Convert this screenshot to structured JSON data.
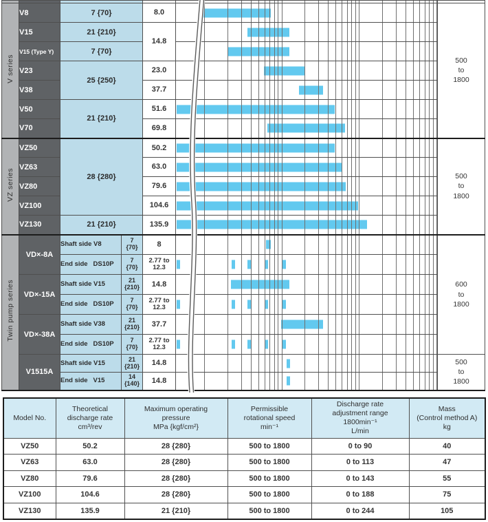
{
  "colors": {
    "bar_blue": "#62c9ef",
    "cell_light_blue": "#bcdcea",
    "table_header_blue": "#d2eaf4",
    "model_cell_dark_gray": "#5f6265",
    "series_column_gray": "#b1b3b5",
    "gridline_gray": "#6e6e6e",
    "border_gray": "#4f4f4f",
    "section_border_black": "#1c1c1c"
  },
  "spec_chart": {
    "series_labels": [
      "V series",
      "VZ series",
      "Twin pump series"
    ],
    "speeds": [
      "500\nto\n1800",
      "500\nto\n1800",
      "600\nto\n1800",
      "500\nto\n1800"
    ],
    "rows": [
      {
        "model": "V8",
        "pressure": "7 {70}",
        "value": "8.0"
      },
      {
        "model": "V15",
        "pressure": "21 {210}",
        "value": "14.8"
      },
      {
        "model": "V15 (Type Y)",
        "pressure": "7 {70}"
      },
      {
        "model": "V23",
        "pressure": "25 {250}",
        "value": "23.0"
      },
      {
        "model": "V38",
        "value": "37.7"
      },
      {
        "model": "V50",
        "pressure": "21 {210}",
        "value": "51.6"
      },
      {
        "model": "V70",
        "value": "69.8"
      },
      {
        "model": "VZ50",
        "pressure": "28 {280}",
        "value": "50.2"
      },
      {
        "model": "VZ63",
        "value": "63.0"
      },
      {
        "model": "VZ80",
        "value": "79.6"
      },
      {
        "model": "VZ100",
        "value": "104.6"
      },
      {
        "model": "VZ130",
        "pressure": "21 {210}",
        "value": "135.9"
      },
      {
        "model": "VD×-8A",
        "desc": "Shaft side V8",
        "pressure": "7\n{70}",
        "value": "8"
      },
      {
        "desc": "End side   DS10P",
        "pressure": "7\n{70}",
        "value": "2.77 to\n12.3"
      },
      {
        "model": "VD×-15A",
        "desc": "Shaft side V15",
        "pressure": "21\n{210}",
        "value": "14.8"
      },
      {
        "desc": "End side   DS10P",
        "pressure": "7\n{70}",
        "value": "2.77 to\n12.3"
      },
      {
        "model": "VD×-38A",
        "desc": "Shaft side V38",
        "pressure": "21\n{210}",
        "value": "37.7"
      },
      {
        "desc": "End side   DS10P",
        "pressure": "7\n{70}",
        "value": "2.77 to\n12.3"
      },
      {
        "model": "V1515A",
        "desc": "Shaft side V15",
        "pressure": "21\n{210}",
        "value": "14.8"
      },
      {
        "desc": "End side   V15",
        "pressure": "14\n{140}",
        "value": "14.8"
      }
    ]
  },
  "chart_data": {
    "type": "bar",
    "orientation": "horizontal-range",
    "title": "Theoretical discharge rate range per pump model",
    "x_axis": {
      "scale": "log",
      "tick_labels_visible": false,
      "has_scale_break_at_left": true
    },
    "grid": true,
    "gridlines_pct": [
      10.76,
      19.68,
      24.91,
      28.61,
      31.49,
      33.83,
      35.85,
      37.56,
      39.05,
      40.42,
      49.34,
      54.57,
      58.27,
      61.15,
      63.49,
      65.51,
      67.22,
      68.71,
      70.08,
      79.0,
      84.23,
      87.93,
      90.81,
      93.15,
      95.17,
      96.88,
      98.37,
      99.74
    ],
    "rows": [
      {
        "model": "V8",
        "discharge_cm3_rev": 8.0,
        "bar": {
          "from_pct": 9.97,
          "to_pct": 36.2
        }
      },
      {
        "model": "V15",
        "discharge_cm3_rev": 14.8,
        "bar": {
          "from_pct": 27.3,
          "to_pct": 43.3
        }
      },
      {
        "model": "V15 (Type Y)",
        "discharge_cm3_rev": 14.8,
        "bar": {
          "from_pct": 19.95,
          "to_pct": 43.3
        }
      },
      {
        "model": "V23",
        "discharge_cm3_rev": 23.0,
        "bar": {
          "from_pct": 33.6,
          "to_pct": 49.3
        }
      },
      {
        "model": "V38",
        "discharge_cm3_rev": 37.7,
        "bar": {
          "from_pct": 47.0,
          "to_pct": 56.4
        }
      },
      {
        "model": "V50",
        "discharge_cm3_rev": 51.6,
        "bar": {
          "from_pct": 0.26,
          "to_pct": 60.9
        }
      },
      {
        "model": "V70",
        "discharge_cm3_rev": 69.8,
        "bar": {
          "from_pct": 34.9,
          "to_pct": 64.8
        }
      },
      {
        "model": "VZ50",
        "discharge_cm3_rev": 50.2,
        "bar": {
          "from_pct": 0.26,
          "to_pct": 60.9
        }
      },
      {
        "model": "VZ63",
        "discharge_cm3_rev": 63.0,
        "bar": {
          "from_pct": 0.26,
          "to_pct": 63.5
        }
      },
      {
        "model": "VZ80",
        "discharge_cm3_rev": 79.6,
        "bar": {
          "from_pct": 0.26,
          "to_pct": 65.1
        }
      },
      {
        "model": "VZ100",
        "discharge_cm3_rev": 104.6,
        "bar": {
          "from_pct": 0.26,
          "to_pct": 69.8
        }
      },
      {
        "model": "VZ130",
        "discharge_cm3_rev": 135.9,
        "bar": {
          "from_pct": 0.26,
          "to_pct": 73.2
        }
      },
      {
        "model": "VD×-8A shaft side V8",
        "discharge_cm3_rev": 8,
        "bar": {
          "from_pct": 34.4,
          "to_pct": 36.2
        }
      },
      {
        "model": "VD×-8A end side DS10P",
        "discharge_range": "2.77 to 12.3",
        "ticks_pct": [
          0.26,
          21.3,
          27.3,
          33.9,
          40.7
        ],
        "tick_w_pct": 1.4
      },
      {
        "model": "VD×-15A shaft side V15",
        "discharge_cm3_rev": 14.8,
        "bar": {
          "from_pct": 21.0,
          "to_pct": 43.3
        }
      },
      {
        "model": "VD×-15A end side DS10P",
        "discharge_range": "2.77 to 12.3",
        "ticks_pct": [
          0.26,
          21.3,
          27.3,
          33.9,
          40.7
        ],
        "tick_w_pct": 1.4
      },
      {
        "model": "VD×-38A shaft side V38",
        "discharge_cm3_rev": 37.7,
        "bar": {
          "from_pct": 40.2,
          "to_pct": 56.2
        }
      },
      {
        "model": "VD×-38A end side DS10P",
        "discharge_range": "2.77 to 12.3",
        "ticks_pct": [
          0.26,
          21.3,
          27.3,
          33.9,
          40.7
        ],
        "tick_w_pct": 1.4
      },
      {
        "model": "V1515A shaft side V15",
        "discharge_cm3_rev": 14.8,
        "bar": {
          "from_pct": 42.3,
          "to_pct": 43.7
        }
      },
      {
        "model": "V1515A end side V15",
        "discharge_cm3_rev": 14.8,
        "bar": {
          "from_pct": 42.3,
          "to_pct": 43.7
        }
      }
    ]
  },
  "bottom_table": {
    "headers": [
      "Model No.",
      "Theoretical\ndischarge rate\ncm³/rev",
      "Maximum operating\npressure\nMPa {kgf/cm²}",
      "Permissible\nrotational speed\nmin⁻¹",
      "Discharge rate\nadjustment range\n1800min⁻¹\nL/min",
      "Mass\n(Control method A)\nkg"
    ],
    "rows": [
      [
        "VZ50",
        "50.2",
        "28 {280}",
        "500 to 1800",
        "0 to  90",
        "40"
      ],
      [
        "VZ63",
        "63.0",
        "28 {280}",
        "500 to 1800",
        "0 to 113",
        "47"
      ],
      [
        "VZ80",
        "79.6",
        "28 {280}",
        "500 to 1800",
        "0 to 143",
        "55"
      ],
      [
        "VZ100",
        "104.6",
        "28 {280}",
        "500 to 1800",
        "0 to 188",
        "75"
      ],
      [
        "VZ130",
        "135.9",
        "21 {210}",
        "500 to 1800",
        "0 to 244",
        "105"
      ]
    ]
  }
}
